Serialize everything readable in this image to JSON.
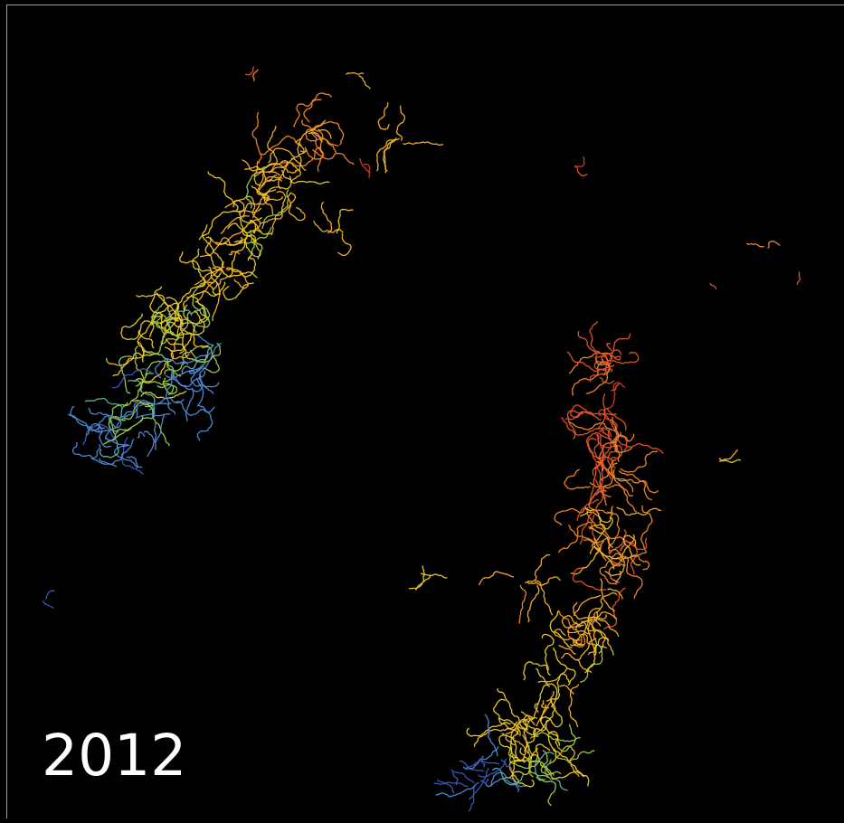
{
  "year_label": "2012",
  "colors": {
    "background": "#000000",
    "frame_border": "#cfd6e6",
    "year_text": "#ffffff",
    "palette": [
      "#3b5bbf",
      "#4f8fd6",
      "#5cb8a8",
      "#9fcf4a",
      "#f0d02a",
      "#f7b52c",
      "#f48a2a",
      "#e8552a",
      "#d8382a"
    ]
  }
}
